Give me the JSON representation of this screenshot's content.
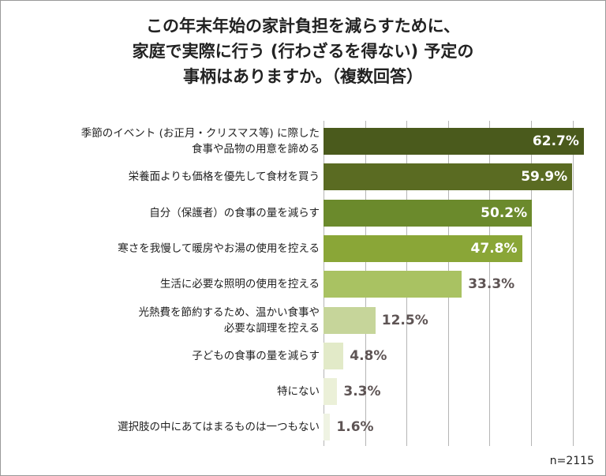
{
  "chart_data": {
    "type": "bar",
    "orientation": "horizontal",
    "title": "この年末年始の家計負担を減らすために、\n家庭で実際に行う (行わざるを得ない) 予定の\n事柄はありますか。（複数回答）",
    "categories": [
      "季節のイベント (お正月・クリスマス等) に際した\n食事や品物の用意を諦める",
      "栄養面よりも価格を優先して食材を買う",
      "自分（保護者）の食事の量を減らす",
      "寒さを我慢して暖房やお湯の使用を控える",
      "生活に必要な照明の使用を控える",
      "光熱費を節約するため、温かい食事や\n必要な調理を控える",
      "子どもの食事の量を減らす",
      "特にない",
      "選択肢の中にあてはまるものは一つもない"
    ],
    "values": [
      62.7,
      59.9,
      50.2,
      47.8,
      33.3,
      12.5,
      4.8,
      3.3,
      1.6
    ],
    "value_labels": [
      "62.7%",
      "59.9%",
      "50.2%",
      "47.8%",
      "33.3%",
      "12.5%",
      "4.8%",
      "3.3%",
      "1.6%"
    ],
    "colors": [
      "#4a5a1c",
      "#5a6b22",
      "#6b8a2c",
      "#8aa637",
      "#a9c262",
      "#c6d59a",
      "#e2eac8",
      "#ebf0d8",
      "#eff3e3"
    ],
    "xlim": [
      0,
      65
    ],
    "xticks": [
      0,
      10,
      20,
      30,
      40,
      50,
      60
    ],
    "grid": true,
    "note": "n=2115"
  }
}
